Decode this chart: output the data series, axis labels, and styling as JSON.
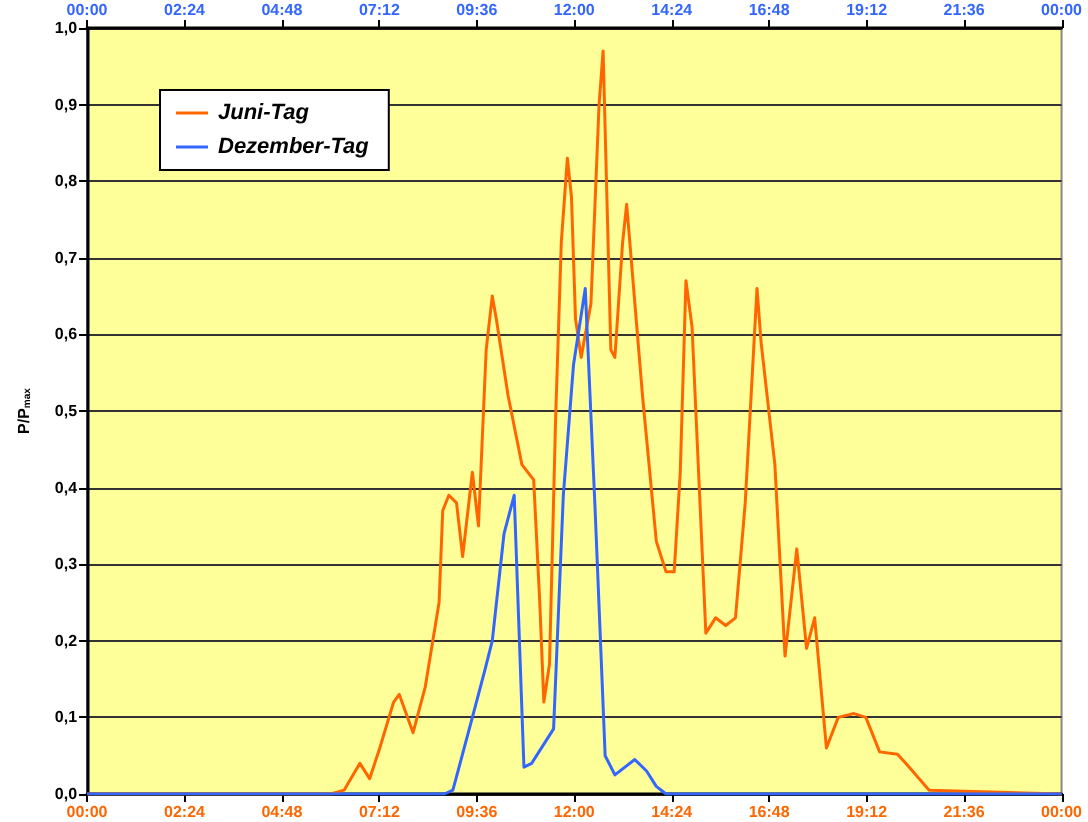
{
  "chart_data": {
    "type": "line",
    "ylabel": "P/P$_{max}$",
    "xlim": [
      0,
      24
    ],
    "xticks": [
      {
        "value": 0,
        "label": "00:00"
      },
      {
        "value": 2.4,
        "label": "02:24"
      },
      {
        "value": 4.8,
        "label": "04:48"
      },
      {
        "value": 7.2,
        "label": "07:12"
      },
      {
        "value": 9.6,
        "label": "09:36"
      },
      {
        "value": 12,
        "label": "12:00"
      },
      {
        "value": 14.4,
        "label": "14:24"
      },
      {
        "value": 16.8,
        "label": "16:48"
      },
      {
        "value": 19.2,
        "label": "19:12"
      },
      {
        "value": 21.6,
        "label": "21:36"
      },
      {
        "value": 24,
        "label": "00:00"
      }
    ],
    "x2lim": [
      0,
      24
    ],
    "x2ticks": [
      {
        "value": 0,
        "label": "00:00"
      },
      {
        "value": 2.4,
        "label": "02:24"
      },
      {
        "value": 4.8,
        "label": "04:48"
      },
      {
        "value": 7.2,
        "label": "07:12"
      },
      {
        "value": 9.6,
        "label": "09:36"
      },
      {
        "value": 12,
        "label": "12:00"
      },
      {
        "value": 14.4,
        "label": "14:24"
      },
      {
        "value": 16.8,
        "label": "16:48"
      },
      {
        "value": 19.2,
        "label": "19:12"
      },
      {
        "value": 21.6,
        "label": "21:36"
      },
      {
        "value": 24,
        "label": "00:00"
      }
    ],
    "ylim": [
      0,
      1
    ],
    "yticks": [
      {
        "value": 0,
        "label": "0,0"
      },
      {
        "value": 0.1,
        "label": "0,1"
      },
      {
        "value": 0.2,
        "label": "0,2"
      },
      {
        "value": 0.3,
        "label": "0,3"
      },
      {
        "value": 0.4,
        "label": "0,4"
      },
      {
        "value": 0.5,
        "label": "0,5"
      },
      {
        "value": 0.6,
        "label": "0,6"
      },
      {
        "value": 0.7,
        "label": "0,7"
      },
      {
        "value": 0.8,
        "label": "0,8"
      },
      {
        "value": 0.9,
        "label": "0,9"
      },
      {
        "value": 1,
        "label": "1,0"
      }
    ],
    "grid": "y",
    "legend": "top left",
    "series": [
      {
        "name": "Juni-Tag",
        "color": "#ff6600",
        "x": [
          0,
          6.0,
          6.33,
          6.72,
          6.96,
          7.21,
          7.55,
          7.69,
          8.03,
          8.33,
          8.67,
          8.76,
          8.91,
          9.1,
          9.25,
          9.49,
          9.64,
          9.83,
          9.98,
          10.08,
          10.37,
          10.71,
          11.0,
          11.15,
          11.25,
          11.39,
          11.54,
          11.68,
          11.83,
          11.93,
          12.03,
          12.17,
          12.27,
          12.41,
          12.61,
          12.71,
          12.9,
          13.0,
          13.19,
          13.29,
          13.68,
          14.02,
          14.26,
          14.46,
          14.61,
          14.75,
          14.9,
          15.24,
          15.48,
          15.73,
          15.97,
          16.21,
          16.5,
          16.6,
          16.94,
          17.19,
          17.48,
          17.72,
          17.92,
          18.21,
          18.5,
          18.89,
          19.18,
          19.52,
          19.96,
          20.25,
          20.74,
          24
        ],
        "values": [
          0,
          0,
          0.005,
          0.04,
          0.02,
          0.06,
          0.12,
          0.13,
          0.08,
          0.14,
          0.25,
          0.37,
          0.39,
          0.38,
          0.31,
          0.42,
          0.35,
          0.58,
          0.65,
          0.62,
          0.52,
          0.43,
          0.41,
          0.25,
          0.12,
          0.17,
          0.49,
          0.72,
          0.83,
          0.78,
          0.62,
          0.57,
          0.6,
          0.64,
          0.9,
          0.97,
          0.58,
          0.57,
          0.72,
          0.77,
          0.52,
          0.33,
          0.29,
          0.29,
          0.42,
          0.67,
          0.61,
          0.21,
          0.23,
          0.22,
          0.23,
          0.38,
          0.66,
          0.59,
          0.43,
          0.18,
          0.32,
          0.19,
          0.23,
          0.06,
          0.1,
          0.105,
          0.1,
          0.055,
          0.052,
          0.035,
          0.005,
          0
        ]
      },
      {
        "name": "Dezember-Tag",
        "color": "#3366ff",
        "x": [
          0,
          8.8,
          9.01,
          9.49,
          9.79,
          9.98,
          10.27,
          10.52,
          10.76,
          10.95,
          11.49,
          11.73,
          11.98,
          12.27,
          12.51,
          12.76,
          13.0,
          13.49,
          13.78,
          14.02,
          14.26,
          24
        ],
        "values": [
          0,
          0,
          0.005,
          0.1,
          0.16,
          0.2,
          0.34,
          0.39,
          0.035,
          0.04,
          0.085,
          0.39,
          0.56,
          0.66,
          0.375,
          0.05,
          0.025,
          0.045,
          0.03,
          0.01,
          0,
          0
        ]
      }
    ]
  }
}
